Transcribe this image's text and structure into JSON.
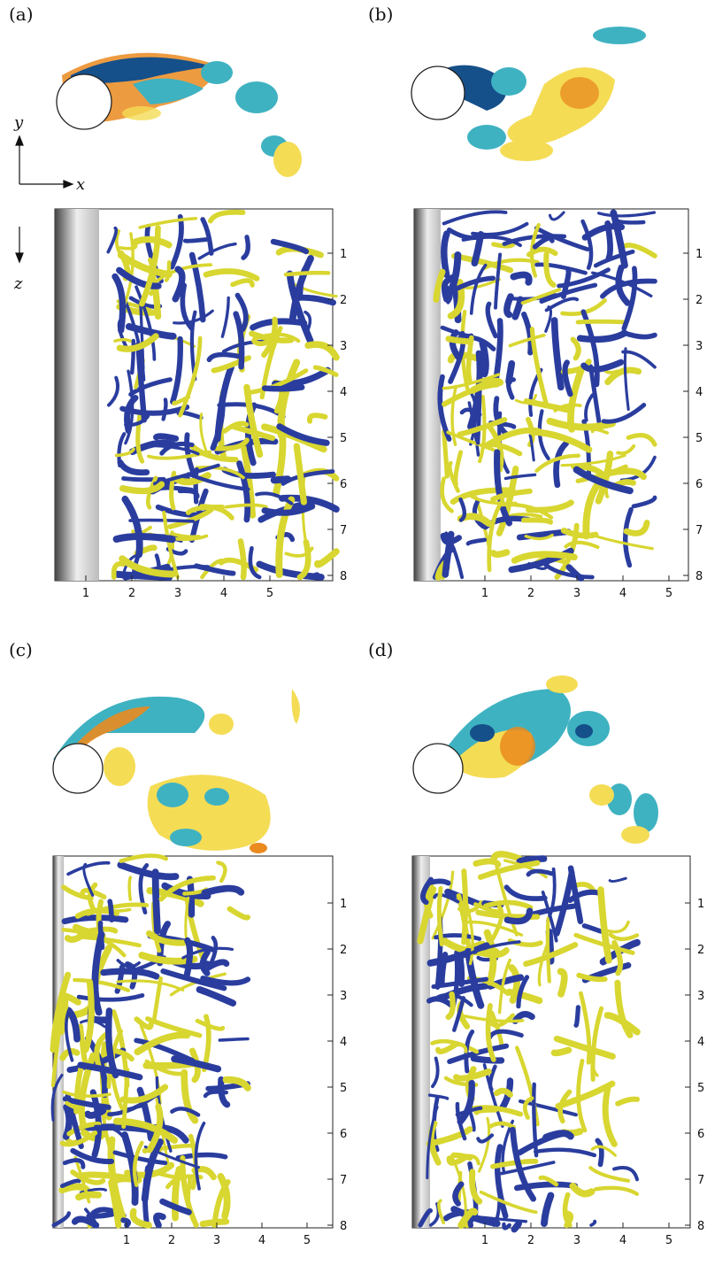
{
  "figure": {
    "panels": [
      {
        "label": "(a)"
      },
      {
        "label": "(b)"
      },
      {
        "label": "(c)"
      },
      {
        "label": "(d)"
      }
    ],
    "axes": {
      "x": "x",
      "y": "y",
      "z": "z"
    },
    "x_ticks": [
      "1",
      "2",
      "3",
      "4",
      "5"
    ],
    "z_ticks": [
      "1",
      "2",
      "3",
      "4",
      "5",
      "6",
      "7",
      "8"
    ],
    "colors": {
      "vortex_blue": "#2a3d9e",
      "vortex_yellow": "#d8d630",
      "contour_teal": "#3fb2c1",
      "contour_dark_blue": "#15508a",
      "contour_orange": "#ea8a1f",
      "contour_yellow": "#f4dc55"
    }
  }
}
